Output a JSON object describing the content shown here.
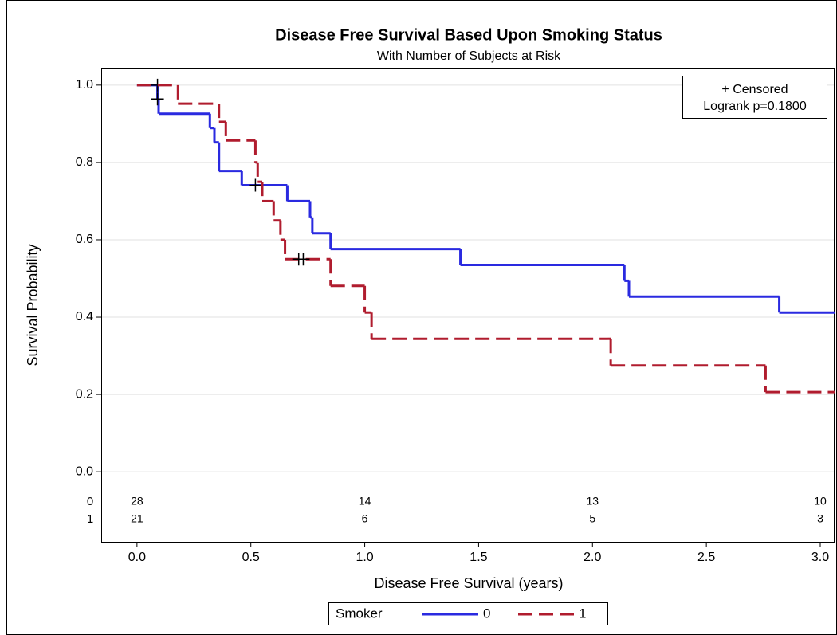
{
  "chart_data": {
    "type": "step",
    "title": "Disease Free Survival Based Upon Smoking Status",
    "subtitle": "With Number of Subjects at Risk",
    "x_label": "Disease Free Survival (years)",
    "y_label": "Survival Probability",
    "xlim": [
      -0.157,
      3.063
    ],
    "ylim": [
      -0.181,
      1.045
    ],
    "xticks": [
      {
        "value": 0,
        "label": "0.0"
      },
      {
        "value": 0.5,
        "label": "0.5"
      },
      {
        "value": 1,
        "label": "1.0"
      },
      {
        "value": 1.5,
        "label": "1.5"
      },
      {
        "value": 2,
        "label": "2.0"
      },
      {
        "value": 2.5,
        "label": "2.5"
      },
      {
        "value": 3,
        "label": "3.0"
      }
    ],
    "yticks": [
      {
        "value": 0,
        "label": "0.0"
      },
      {
        "value": 0.2,
        "label": "0.2"
      },
      {
        "value": 0.4,
        "label": "0.4"
      },
      {
        "value": 0.6,
        "label": "0.6"
      },
      {
        "value": 0.8,
        "label": "0.8"
      },
      {
        "value": 1,
        "label": "1.0"
      }
    ],
    "grid": true,
    "legend_title": "Smoker",
    "series": [
      {
        "name": "0",
        "color": "#2a2ae0",
        "dashed": false,
        "x": [
          0,
          0.09,
          0.095,
          0.32,
          0.34,
          0.36,
          0.46,
          0.66,
          0.76,
          0.77,
          0.85,
          1.42,
          2.14,
          2.16,
          2.82
        ],
        "values": [
          1.0,
          0.964,
          0.926,
          0.889,
          0.852,
          0.778,
          0.741,
          0.7,
          0.658,
          0.617,
          0.576,
          0.535,
          0.494,
          0.453,
          0.412
        ],
        "censor_x": [
          0.09,
          0.09,
          0.52
        ],
        "censor_y": [
          1.0,
          0.964,
          0.741
        ]
      },
      {
        "name": "1",
        "color": "#b01c2e",
        "dashed": true,
        "x": [
          0,
          0.18,
          0.36,
          0.39,
          0.52,
          0.53,
          0.55,
          0.6,
          0.63,
          0.65,
          0.85,
          1.0,
          1.03,
          2.08,
          2.76
        ],
        "values": [
          1.0,
          0.952,
          0.905,
          0.857,
          0.8,
          0.75,
          0.7,
          0.65,
          0.6,
          0.55,
          0.481,
          0.412,
          0.344,
          0.275,
          0.206
        ],
        "censor_x": [
          0.71,
          0.73
        ],
        "censor_y": [
          0.55,
          0.55
        ]
      }
    ],
    "inset": {
      "censored": "+ Censored",
      "logrank": "Logrank p=0.1800"
    },
    "at_risk": {
      "x": [
        0,
        1,
        2,
        3
      ],
      "rows": [
        {
          "label": "0",
          "values": [
            28,
            14,
            13,
            10
          ]
        },
        {
          "label": "1",
          "values": [
            21,
            6,
            5,
            3
          ]
        }
      ]
    }
  }
}
